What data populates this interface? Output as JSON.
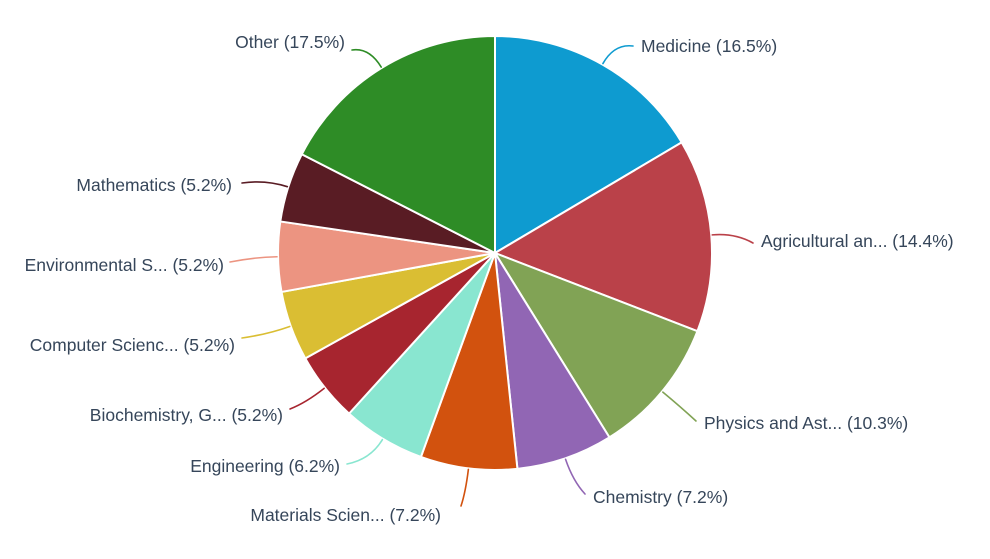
{
  "chart_data": {
    "type": "pie",
    "start_angle_deg": -90,
    "direction": "clockwise",
    "background": "#FFFFFF",
    "label_text_color": "#36465A",
    "legend_position": "outside-labels-with-leader-lines",
    "slices": [
      {
        "name": "Medicine",
        "display": "Medicine (16.5%)",
        "value": 16.5,
        "color": "#0E9BD0"
      },
      {
        "name": "Agricultural an...",
        "display": "Agricultural an... (14.4%)",
        "value": 14.4,
        "color": "#BA4149"
      },
      {
        "name": "Physics and Ast...",
        "display": "Physics and Ast... (10.3%)",
        "value": 10.3,
        "color": "#81A355"
      },
      {
        "name": "Chemistry",
        "display": "Chemistry (7.2%)",
        "value": 7.2,
        "color": "#9166B4"
      },
      {
        "name": "Materials Scien...",
        "display": "Materials Scien... (7.2%)",
        "value": 7.2,
        "color": "#D2520E"
      },
      {
        "name": "Engineering",
        "display": "Engineering (6.2%)",
        "value": 6.2,
        "color": "#89E6D0"
      },
      {
        "name": "Biochemistry, G...",
        "display": "Biochemistry, G... (5.2%)",
        "value": 5.2,
        "color": "#A7252F"
      },
      {
        "name": "Computer Scienc...",
        "display": "Computer Scienc... (5.2%)",
        "value": 5.2,
        "color": "#DABE33"
      },
      {
        "name": "Environmental S...",
        "display": "Environmental S... (5.2%)",
        "value": 5.2,
        "color": "#EC9481"
      },
      {
        "name": "Mathematics",
        "display": "Mathematics (5.2%)",
        "value": 5.2,
        "color": "#591C24"
      },
      {
        "name": "Other",
        "display": "Other (17.5%)",
        "value": 17.5,
        "color": "#2E8C26"
      }
    ]
  }
}
